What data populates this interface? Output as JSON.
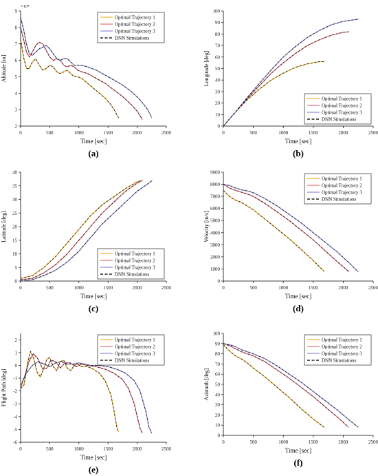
{
  "colors": {
    "traj1": "#f0b42d",
    "traj2": "#e8707a",
    "traj3": "#8f8fd8",
    "dnn": "#222222",
    "axis": "#000000",
    "legend_border": "#000000"
  },
  "chart_data": [
    {
      "type": "line",
      "id": "a",
      "caption": "(a)",
      "xlabel": "Time [sec]",
      "ylabel": "Altitude [m]",
      "y_multiplier": "×10⁴",
      "xlim": [
        0,
        2500
      ],
      "ylim": [
        2,
        9
      ],
      "xticks": [
        0,
        500,
        1000,
        1500,
        2000,
        2500
      ],
      "yticks": [
        2,
        3,
        4,
        5,
        6,
        7,
        8,
        9
      ],
      "legend_position": "top-right",
      "legend": [
        "Optimal Trajectory 1",
        "Optimal Trajectory 2",
        "Optimal Trajectory 3",
        "DNN Simulations"
      ],
      "series": [
        {
          "name": "Optimal Trajectory 1",
          "x": [
            0,
            50,
            100,
            150,
            200,
            260,
            320,
            380,
            440,
            500,
            560,
            620,
            680,
            740,
            800,
            860,
            920,
            980,
            1050,
            1150,
            1250,
            1350,
            1450,
            1550,
            1620,
            1680
          ],
          "y": [
            7.3,
            6.2,
            5.5,
            5.5,
            5.9,
            6.1,
            5.7,
            5.4,
            5.5,
            5.7,
            5.6,
            5.3,
            5.2,
            5.3,
            5.4,
            5.2,
            5.0,
            5.0,
            4.9,
            4.6,
            4.3,
            4.0,
            3.7,
            3.3,
            2.9,
            2.5
          ]
        },
        {
          "name": "Optimal Trajectory 2",
          "x": [
            0,
            50,
            100,
            150,
            200,
            260,
            320,
            380,
            440,
            500,
            560,
            620,
            680,
            740,
            800,
            860,
            920,
            980,
            1050,
            1150,
            1300,
            1450,
            1600,
            1750,
            1900,
            2000,
            2090
          ],
          "y": [
            8.0,
            7.3,
            6.5,
            6.2,
            6.5,
            6.9,
            7.1,
            7.0,
            6.6,
            6.2,
            6.0,
            6.1,
            6.0,
            5.7,
            5.6,
            5.7,
            5.6,
            5.4,
            5.3,
            5.2,
            4.9,
            4.6,
            4.2,
            3.8,
            3.3,
            2.9,
            2.4
          ]
        },
        {
          "name": "Optimal Trajectory 3",
          "x": [
            0,
            50,
            100,
            150,
            200,
            260,
            320,
            380,
            440,
            500,
            560,
            620,
            680,
            740,
            800,
            860,
            920,
            980,
            1050,
            1150,
            1300,
            1450,
            1600,
            1750,
            1900,
            2050,
            2180,
            2250
          ],
          "y": [
            8.6,
            7.9,
            7.0,
            6.4,
            6.3,
            6.5,
            6.7,
            6.8,
            6.9,
            6.7,
            6.4,
            6.1,
            6.0,
            6.1,
            6.1,
            5.9,
            5.7,
            5.7,
            5.7,
            5.6,
            5.4,
            5.1,
            4.8,
            4.5,
            4.1,
            3.6,
            3.0,
            2.5
          ]
        }
      ]
    },
    {
      "type": "line",
      "id": "b",
      "caption": "(b)",
      "xlabel": "Time [sec]",
      "ylabel": "Longitude [deg]",
      "xlim": [
        0,
        2500
      ],
      "ylim": [
        0,
        100
      ],
      "xticks": [
        0,
        500,
        1000,
        1500,
        2000,
        2500
      ],
      "yticks": [
        0,
        10,
        20,
        30,
        40,
        50,
        60,
        70,
        80,
        90,
        100
      ],
      "legend_position": "bottom-right",
      "legend": [
        "Optimal Trajectory 1",
        "Optimal Trajectory 2",
        "Optimal Trajectory 3",
        "DNN Simulations"
      ],
      "series": [
        {
          "name": "Optimal Trajectory 1",
          "x": [
            0,
            100,
            200,
            400,
            600,
            800,
            1000,
            1200,
            1400,
            1600,
            1680
          ],
          "y": [
            0,
            6,
            12,
            23,
            32,
            40,
            46,
            51,
            54,
            56,
            56
          ]
        },
        {
          "name": "Optimal Trajectory 2",
          "x": [
            0,
            100,
            200,
            400,
            600,
            800,
            1000,
            1200,
            1400,
            1600,
            1800,
            2000,
            2100
          ],
          "y": [
            0,
            6,
            12,
            24,
            35,
            46,
            55,
            63,
            70,
            75,
            79,
            81.5,
            82
          ]
        },
        {
          "name": "Optimal Trajectory 3",
          "x": [
            0,
            100,
            200,
            400,
            600,
            800,
            1000,
            1200,
            1400,
            1600,
            1800,
            2000,
            2200,
            2260
          ],
          "y": [
            0,
            6,
            12,
            25,
            37,
            49,
            60,
            69,
            77,
            83,
            88,
            91,
            92.5,
            93
          ]
        }
      ]
    },
    {
      "type": "line",
      "id": "c",
      "caption": "(c)",
      "xlabel": "Time [sec]",
      "ylabel": "Latitude [deg]",
      "xlim": [
        0,
        2500
      ],
      "ylim": [
        0,
        40
      ],
      "xticks": [
        0,
        500,
        1000,
        1500,
        2000,
        2500
      ],
      "yticks": [
        0,
        5,
        10,
        15,
        20,
        25,
        30,
        35,
        40
      ],
      "legend_position": "bottom-right",
      "legend": [
        "Optimal Trajectory 1",
        "Optimal Trajectory 2",
        "Optimal Trajectory 3",
        "DNN Simulations"
      ],
      "series": [
        {
          "name": "Optimal Trajectory 1",
          "x": [
            0,
            200,
            400,
            600,
            800,
            1000,
            1200,
            1400,
            1600,
            1800,
            2000,
            2090
          ],
          "y": [
            1,
            2,
            5,
            9,
            14,
            19,
            24,
            28,
            31,
            34,
            36.5,
            37
          ]
        },
        {
          "name": "Optimal Trajectory 2",
          "x": [
            0,
            200,
            400,
            600,
            800,
            1000,
            1200,
            1400,
            1600,
            1800,
            2000,
            2090
          ],
          "y": [
            0.5,
            1,
            3,
            6,
            10,
            15,
            20,
            25,
            29,
            33,
            36,
            37
          ]
        },
        {
          "name": "Optimal Trajectory 3",
          "x": [
            0,
            200,
            400,
            600,
            800,
            1000,
            1200,
            1400,
            1600,
            1800,
            2000,
            2200,
            2260
          ],
          "y": [
            0,
            0.5,
            2,
            4,
            7,
            11,
            16,
            21,
            25,
            29,
            33,
            36,
            37
          ]
        }
      ]
    },
    {
      "type": "line",
      "id": "d",
      "caption": "(d)",
      "xlabel": "Time [sec]",
      "ylabel": "Velocity [m/s]",
      "xlim": [
        0,
        2500
      ],
      "ylim": [
        0,
        9000
      ],
      "xticks": [
        0,
        500,
        1000,
        1500,
        2000,
        2500
      ],
      "yticks": [
        0,
        1000,
        2000,
        3000,
        4000,
        5000,
        6000,
        7000,
        8000,
        9000
      ],
      "legend_position": "top-right",
      "legend": [
        "Optimal Trajectory 1",
        "Optimal Trajectory 2",
        "Optimal Trajectory 3",
        "DNN Simulations"
      ],
      "series": [
        {
          "name": "Optimal Trajectory 1",
          "x": [
            0,
            100,
            200,
            300,
            400,
            500,
            700,
            900,
            1100,
            1300,
            1500,
            1680
          ],
          "y": [
            7500,
            7000,
            6700,
            6500,
            6200,
            5900,
            5100,
            4300,
            3500,
            2600,
            1700,
            800
          ]
        },
        {
          "name": "Optimal Trajectory 2",
          "x": [
            0,
            100,
            200,
            300,
            400,
            500,
            700,
            900,
            1100,
            1300,
            1500,
            1700,
            1900,
            2100
          ],
          "y": [
            8000,
            7700,
            7500,
            7350,
            7200,
            7000,
            6400,
            5700,
            5000,
            4200,
            3400,
            2500,
            1600,
            750
          ]
        },
        {
          "name": "Optimal Trajectory 3",
          "x": [
            0,
            100,
            200,
            300,
            400,
            500,
            700,
            900,
            1100,
            1300,
            1500,
            1700,
            1900,
            2100,
            2250
          ],
          "y": [
            8000,
            7900,
            7700,
            7550,
            7450,
            7300,
            6800,
            6200,
            5500,
            4800,
            4000,
            3200,
            2400,
            1500,
            750
          ]
        }
      ]
    },
    {
      "type": "line",
      "id": "e",
      "caption": "(e)",
      "xlabel": "Time [sec]",
      "ylabel": "Flight Path [deg]",
      "xlim": [
        0,
        2500
      ],
      "ylim": [
        -6,
        2.5
      ],
      "xticks": [
        0,
        500,
        1000,
        1500,
        2000,
        2500
      ],
      "yticks": [
        -6,
        -5,
        -4,
        -3,
        -2,
        -1,
        0,
        1,
        2
      ],
      "legend_position": "top-right",
      "legend": [
        "Optimal Trajectory 1",
        "Optimal Trajectory 2",
        "Optimal Trajectory 3",
        "DNN Simulations"
      ],
      "series": [
        {
          "name": "Optimal Trajectory 1",
          "x": [
            0,
            60,
            120,
            170,
            220,
            280,
            340,
            400,
            450,
            500,
            560,
            620,
            680,
            740,
            800,
            860,
            920,
            980,
            1050,
            1150,
            1250,
            1350,
            1450,
            1550,
            1600,
            1650,
            1680
          ],
          "y": [
            -1.8,
            -1.5,
            0.2,
            1.1,
            0.6,
            -0.5,
            -0.9,
            -0.2,
            0.5,
            0.6,
            -0.1,
            -0.4,
            0.3,
            0.4,
            -0.2,
            -0.4,
            0.0,
            0.1,
            -0.1,
            -0.1,
            -0.3,
            -0.6,
            -1.2,
            -2.3,
            -3.5,
            -4.8,
            -5.2
          ]
        },
        {
          "name": "Optimal Trajectory 2",
          "x": [
            0,
            80,
            150,
            220,
            300,
            380,
            450,
            520,
            600,
            680,
            760,
            850,
            950,
            1050,
            1150,
            1300,
            1450,
            1600,
            1750,
            1850,
            1950,
            2000,
            2050,
            2090
          ],
          "y": [
            -1.7,
            -0.7,
            0.4,
            0.9,
            0.5,
            -0.3,
            -0.2,
            0.4,
            0.3,
            -0.2,
            0.2,
            0.2,
            -0.1,
            0.1,
            0.0,
            -0.1,
            -0.3,
            -0.6,
            -1.1,
            -1.8,
            -3.0,
            -4.0,
            -4.9,
            -5.3
          ]
        },
        {
          "name": "Optimal Trajectory 3",
          "x": [
            0,
            100,
            200,
            300,
            400,
            500,
            600,
            700,
            800,
            900,
            1000,
            1100,
            1200,
            1350,
            1500,
            1650,
            1800,
            1950,
            2050,
            2150,
            2200,
            2250
          ],
          "y": [
            -1.6,
            -0.6,
            0.0,
            0.3,
            0.1,
            -0.1,
            0.2,
            0.3,
            0.1,
            0.1,
            0.2,
            0.1,
            0.0,
            0.0,
            -0.1,
            -0.3,
            -0.6,
            -1.2,
            -2.0,
            -3.6,
            -4.8,
            -5.3
          ]
        }
      ]
    },
    {
      "type": "line",
      "id": "f",
      "caption": "(f)",
      "xlabel": "Time [sec]",
      "ylabel": "Azimuth [deg]",
      "xlim": [
        0,
        2500
      ],
      "ylim": [
        0,
        100
      ],
      "xticks": [
        0,
        500,
        1000,
        1500,
        2000,
        2500
      ],
      "yticks": [
        0,
        10,
        20,
        30,
        40,
        50,
        60,
        70,
        80,
        90,
        100
      ],
      "legend_position": "top-right",
      "legend": [
        "Optimal Trajectory 1",
        "Optimal Trajectory 2",
        "Optimal Trajectory 3",
        "DNN Simulations"
      ],
      "series": [
        {
          "name": "Optimal Trajectory 1",
          "x": [
            0,
            100,
            200,
            300,
            400,
            500,
            700,
            900,
            1100,
            1300,
            1500,
            1680
          ],
          "y": [
            89,
            83,
            78,
            75,
            71,
            66,
            57,
            47,
            37,
            26,
            16,
            8
          ]
        },
        {
          "name": "Optimal Trajectory 2",
          "x": [
            0,
            100,
            200,
            300,
            400,
            500,
            700,
            900,
            1100,
            1300,
            1500,
            1700,
            1900,
            2090
          ],
          "y": [
            90,
            88,
            85,
            82,
            80,
            78,
            72,
            64,
            56,
            47,
            38,
            28,
            18,
            8
          ]
        },
        {
          "name": "Optimal Trajectory 3",
          "x": [
            0,
            100,
            200,
            300,
            400,
            500,
            700,
            900,
            1100,
            1300,
            1500,
            1700,
            1900,
            2100,
            2250
          ],
          "y": [
            90,
            89,
            87,
            84,
            82,
            80,
            75,
            68,
            60,
            52,
            43,
            34,
            25,
            15,
            8
          ]
        }
      ]
    }
  ]
}
